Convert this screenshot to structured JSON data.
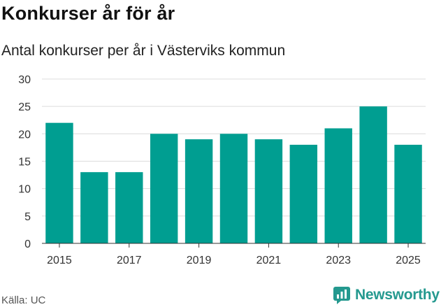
{
  "title": "Konkurser år för år",
  "subtitle": "Antal konkurser per år i Västerviks kommun",
  "source": "Källa: UC",
  "brand": {
    "name": "Newsworthy",
    "icon": "newsworthy-logo-icon",
    "color": "#24998f"
  },
  "chart_data": {
    "type": "bar",
    "categories": [
      "2015",
      "2016",
      "2017",
      "2018",
      "2019",
      "2020",
      "2021",
      "2022",
      "2023",
      "2024",
      "2025"
    ],
    "values": [
      22,
      13,
      13,
      20,
      19,
      20,
      19,
      18,
      21,
      25,
      18
    ],
    "xticks": [
      "2015",
      "2017",
      "2019",
      "2021",
      "2023",
      "2025"
    ],
    "yticks": [
      0,
      5,
      10,
      15,
      20,
      25,
      30
    ],
    "ylim": [
      0,
      30
    ],
    "bar_color": "#009e91",
    "grid": true,
    "xlabel": "",
    "ylabel": ""
  }
}
